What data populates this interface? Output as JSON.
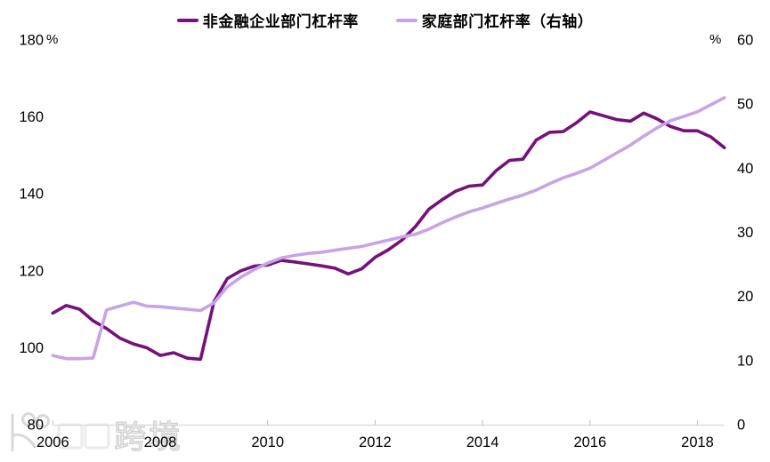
{
  "chart_data": {
    "type": "line",
    "title": "",
    "x_start": 2006,
    "x_step": 0.25,
    "x_ticks": [
      2006,
      2008,
      2010,
      2012,
      2014,
      2016,
      2018
    ],
    "grid": "off",
    "legend_position": "top-center",
    "left_axis": {
      "unit": "%",
      "min": 80,
      "max": 180,
      "ticks": [
        180,
        160,
        140,
        120,
        100,
        80
      ]
    },
    "right_axis": {
      "unit": "%",
      "min": 0,
      "max": 60,
      "ticks": [
        60,
        50,
        40,
        30,
        20,
        10,
        0
      ]
    },
    "series": [
      {
        "name": "非金融企业部门杠杆率",
        "axis": "left",
        "color": "#76107A",
        "values": [
          109.0,
          111.0,
          110.0,
          107.0,
          105.0,
          102.5,
          101.0,
          100.0,
          98.0,
          98.7,
          97.3,
          97.0,
          112.0,
          118.0,
          120.0,
          121.2,
          121.5,
          122.7,
          122.3,
          121.8,
          121.3,
          120.7,
          119.2,
          120.5,
          123.5,
          125.5,
          128.0,
          131.5,
          136.0,
          138.5,
          140.7,
          142.0,
          142.3,
          146.0,
          148.7,
          149.0,
          154.0,
          156.0,
          156.2,
          158.5,
          161.3,
          160.3,
          159.3,
          158.9,
          161.0,
          159.5,
          157.5,
          156.4,
          156.4,
          154.8,
          152.0
        ]
      },
      {
        "name": "家庭部门杠杆率（右轴）",
        "axis": "right",
        "color": "#C7A4E6",
        "values": [
          10.8,
          10.3,
          10.3,
          10.4,
          17.9,
          18.5,
          19.1,
          18.5,
          18.4,
          18.2,
          18.0,
          17.8,
          19.0,
          21.5,
          23.0,
          24.2,
          25.2,
          26.0,
          26.4,
          26.7,
          26.9,
          27.2,
          27.5,
          27.8,
          28.3,
          28.8,
          29.3,
          29.7,
          30.5,
          31.5,
          32.4,
          33.2,
          33.8,
          34.5,
          35.2,
          35.8,
          36.6,
          37.6,
          38.5,
          39.2,
          40.0,
          41.2,
          42.4,
          43.6,
          45.0,
          46.3,
          47.4,
          48.1,
          48.8,
          49.9,
          51.0
        ]
      }
    ]
  },
  "watermark": {
    "text": "跨境"
  }
}
